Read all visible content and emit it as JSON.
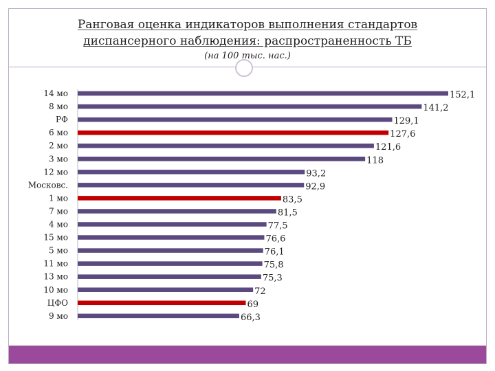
{
  "page": {
    "title_line1": "Ранговая оценка индикаторов выполнения стандартов",
    "title_line2": "диспансерного наблюдения: распространенность ТБ",
    "subtitle": "(на 100 тыс. нас.)"
  },
  "colors": {
    "bar_default": "#5b4a80",
    "bar_highlight": "#c00000",
    "bottom_bar": "#9b4a9b"
  },
  "chart_data": {
    "type": "bar",
    "orientation": "horizontal",
    "title": "",
    "xlabel": "",
    "ylabel": "",
    "xlim": [
      0,
      152.1
    ],
    "grid": false,
    "legend": "none",
    "categories": [
      "14 мо",
      "8 мо",
      "РФ",
      "6 мо",
      "2 мо",
      "3 мо",
      "12 мо",
      "Московс.",
      "1 мо",
      "7 мо",
      "4 мо",
      "15 мо",
      "5 мо",
      "11 мо",
      "13 мо",
      "10 мо",
      "ЦФО",
      "9 мо"
    ],
    "values": [
      152.1,
      141.2,
      129.1,
      127.6,
      121.6,
      118,
      93.2,
      92.9,
      83.5,
      81.5,
      77.5,
      76.6,
      76.1,
      75.8,
      75.3,
      72,
      69,
      66.3
    ],
    "value_labels": [
      "152,1",
      "141,2",
      "129,1",
      "127,6",
      "121,6",
      "118",
      "93,2",
      "92,9",
      "83,5",
      "81,5",
      "77,5",
      "76,6",
      "76,1",
      "75,8",
      "75,3",
      "72",
      "69",
      "66,3"
    ],
    "highlighted": [
      "6 мо",
      "1 мо",
      "ЦФО"
    ]
  }
}
